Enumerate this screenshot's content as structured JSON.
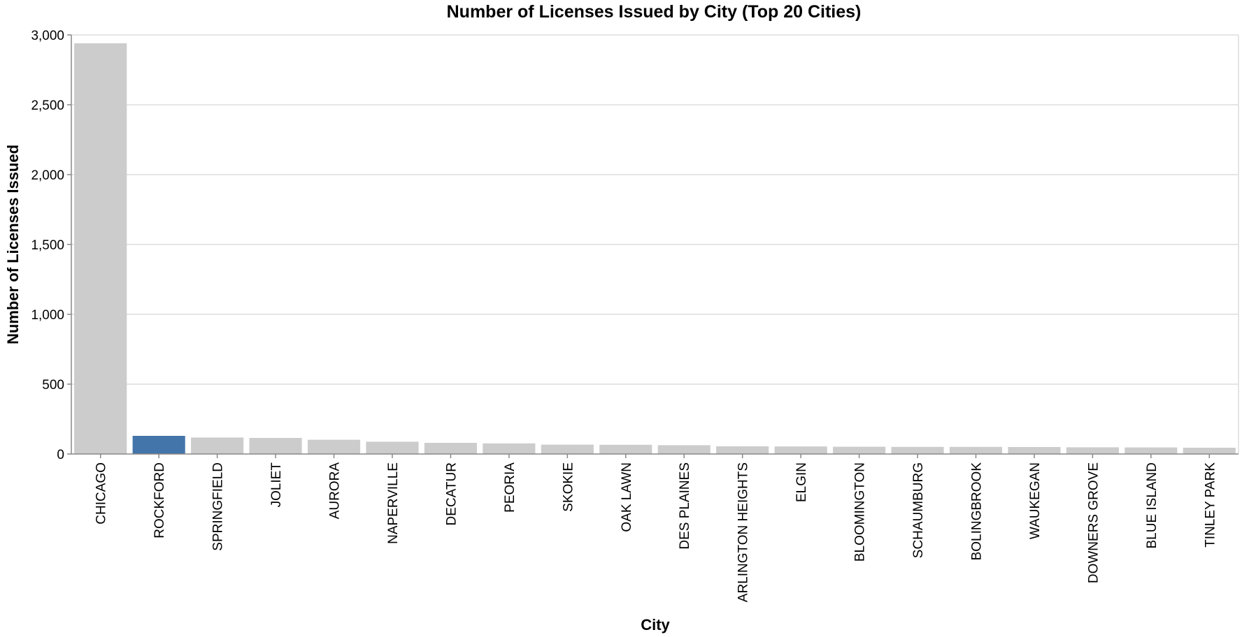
{
  "chart_data": {
    "type": "bar",
    "title": "Number of Licenses Issued by City (Top 20 Cities)",
    "xlabel": "City",
    "ylabel": "Number of Licenses Issued",
    "ylim": [
      0,
      3000
    ],
    "yticks": [
      0,
      500,
      1000,
      1500,
      2000,
      2500,
      3000
    ],
    "ytick_labels": [
      "0",
      "500",
      "1,000",
      "1,500",
      "2,000",
      "2,500",
      "3,000"
    ],
    "grid": true,
    "categories": [
      "CHICAGO",
      "ROCKFORD",
      "SPRINGFIELD",
      "JOLIET",
      "AURORA",
      "NAPERVILLE",
      "DECATUR",
      "PEORIA",
      "SKOKIE",
      "OAK LAWN",
      "DES PLAINES",
      "ARLINGTON HEIGHTS",
      "ELGIN",
      "BLOOMINGTON",
      "SCHAUMBURG",
      "BOLINGBROOK",
      "WAUKEGAN",
      "DOWNERS GROVE",
      "BLUE ISLAND",
      "TINLEY PARK"
    ],
    "values": [
      2940,
      130,
      118,
      115,
      102,
      88,
      80,
      76,
      67,
      66,
      63,
      55,
      54,
      52,
      51,
      51,
      50,
      48,
      47,
      45
    ],
    "highlight_category": "ROCKFORD",
    "colors": {
      "default": "#cccccc",
      "highlight": "#4475aa"
    }
  }
}
